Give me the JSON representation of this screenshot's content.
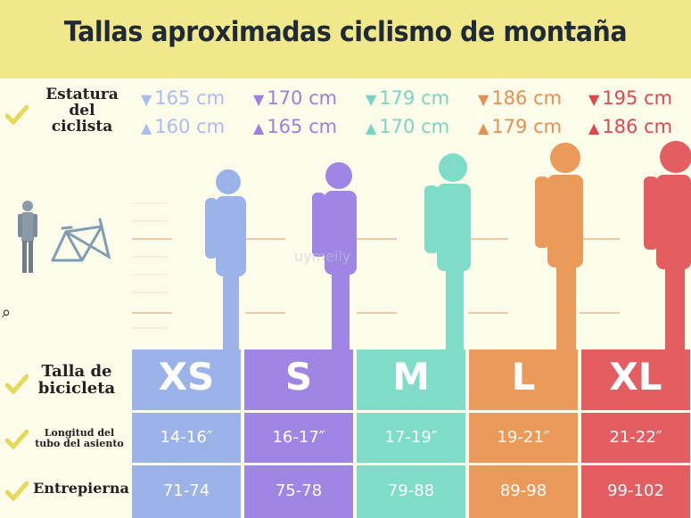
{
  "title": "Tallas aproximadas ciclismo de montaña",
  "watermark": "uymeily",
  "labels": {
    "height": [
      "Estatura del",
      "ciclista"
    ],
    "bike_size": [
      "Talla de",
      "bicicleta"
    ],
    "seat_tube": [
      "Longitud del",
      "tubo del asiento"
    ],
    "inseam": "Entrepierna"
  },
  "columns": [
    {
      "size": "XS",
      "height_max": "165 cm",
      "height_min": "160 cm",
      "seat_tube": "14-16″",
      "inseam": "71-74",
      "color": "#9cb3ea",
      "text_color": "#a9bdf0"
    },
    {
      "size": "S",
      "height_max": "170 cm",
      "height_min": "165 cm",
      "seat_tube": "16-17″",
      "inseam": "75-78",
      "color": "#9f86e4",
      "text_color": "#9a80e0"
    },
    {
      "size": "M",
      "height_max": "179 cm",
      "height_min": "170 cm",
      "seat_tube": "17-19″",
      "inseam": "79-88",
      "color": "#7fdcc6",
      "text_color": "#76d6c1"
    },
    {
      "size": "L",
      "height_max": "186 cm",
      "height_min": "179 cm",
      "seat_tube": "19-21″",
      "inseam": "89-98",
      "color": "#eb9a5a",
      "text_color": "#e68f4f"
    },
    {
      "size": "XL",
      "height_max": "195 cm",
      "height_min": "186 cm",
      "seat_tube": "21-22″",
      "inseam": "99-102",
      "color": "#e45d60",
      "text_color": "#e0484d"
    }
  ],
  "icons": {
    "checkmark": "check-icon",
    "rider_and_frame": "rider-bike-frame-icon",
    "zoom": "magnifier-icon"
  }
}
